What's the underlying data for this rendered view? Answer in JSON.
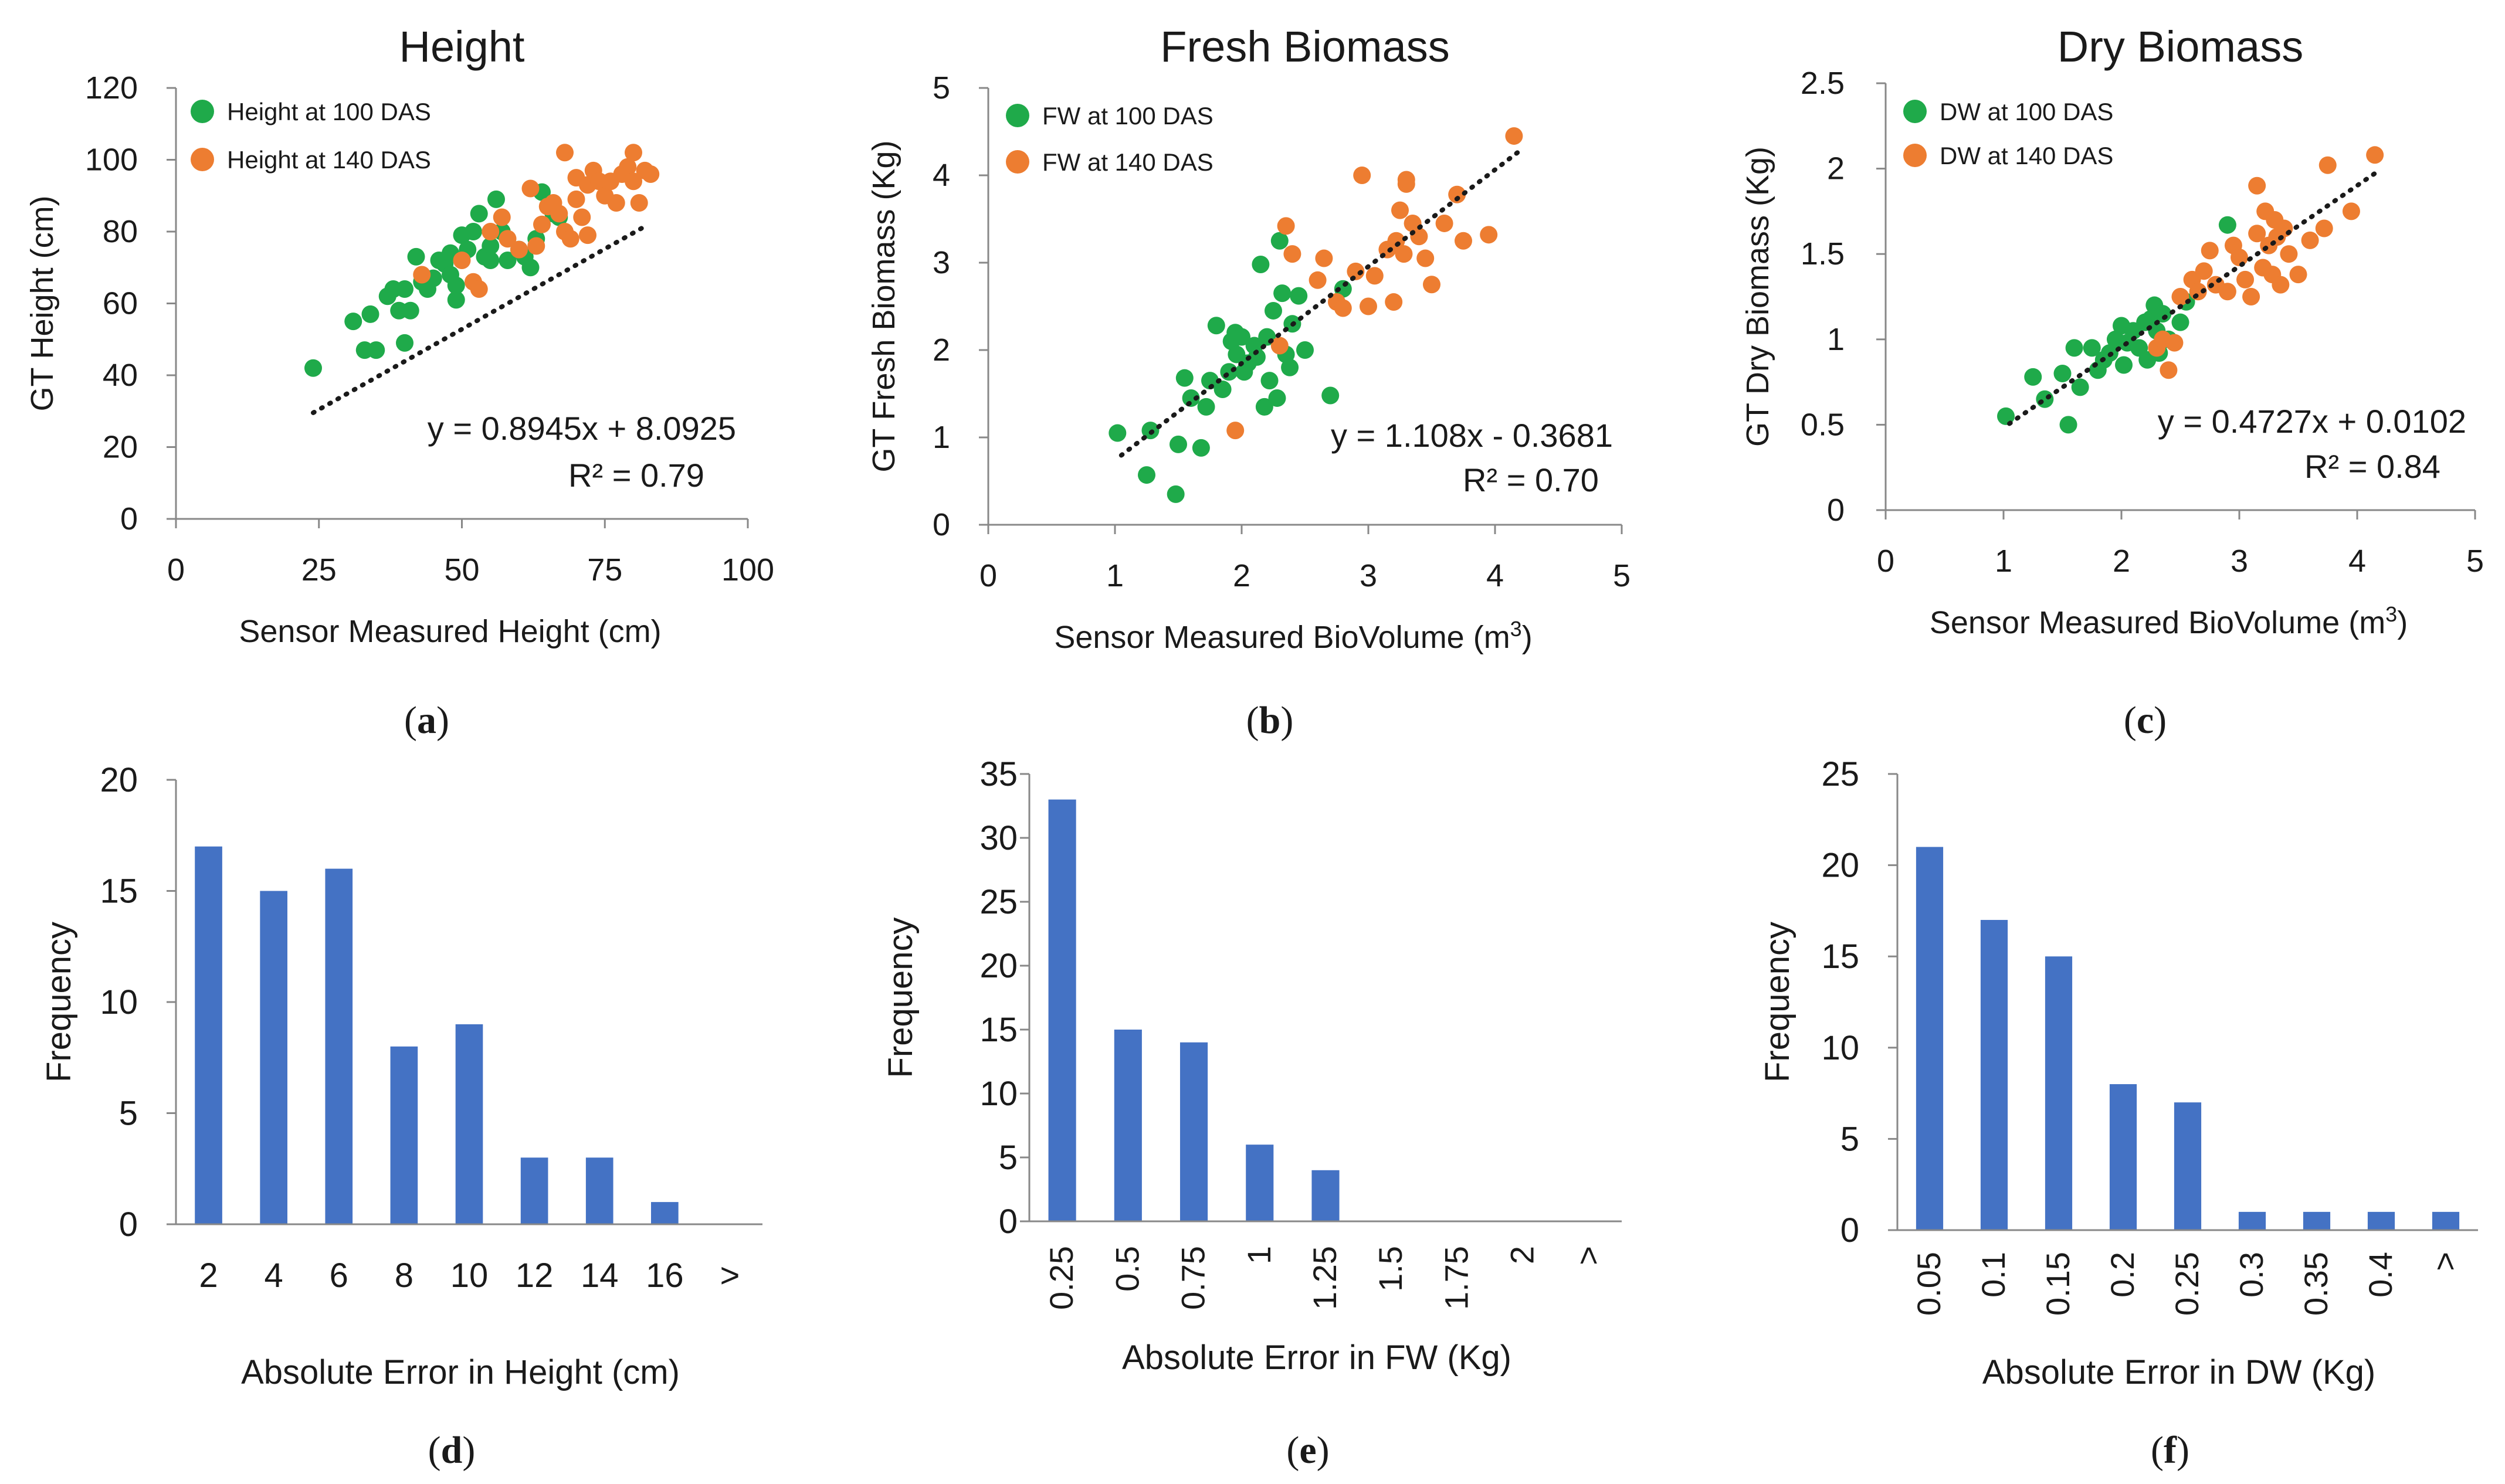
{
  "colors": {
    "green": "#1faa4a",
    "orange": "#ed7d31",
    "bar": "#4472c4",
    "axis": "#888888",
    "text": "#1a1a1a",
    "trend": "#1a1a1a"
  },
  "chart_data": [
    {
      "id": "a",
      "type": "scatter",
      "title": "Height",
      "xlabel": "Sensor Measured Height (cm)",
      "ylabel": "GT Height (cm)",
      "caption_letter": "a",
      "xlim": [
        0,
        100
      ],
      "xticks": [
        0,
        25,
        50,
        75,
        100
      ],
      "ylim": [
        0,
        120
      ],
      "yticks": [
        0,
        20,
        40,
        60,
        80,
        100,
        120
      ],
      "equation": "y = 0.8945x + 8.0925",
      "r2": "R² = 0.79",
      "trendline": {
        "slope": 0.8945,
        "intercept": 8.0925,
        "x_range": [
          24,
          82
        ]
      },
      "series": [
        {
          "name": "Height at 100 DAS",
          "color_key": "green",
          "points": [
            [
              24,
              42
            ],
            [
              31,
              55
            ],
            [
              33,
              47
            ],
            [
              35,
              47
            ],
            [
              34,
              57
            ],
            [
              37,
              62
            ],
            [
              38,
              64
            ],
            [
              40,
              64
            ],
            [
              39,
              58
            ],
            [
              41,
              58
            ],
            [
              40,
              49
            ],
            [
              42,
              73
            ],
            [
              43,
              66
            ],
            [
              44,
              64
            ],
            [
              45,
              67
            ],
            [
              46,
              72
            ],
            [
              47,
              71
            ],
            [
              48,
              74
            ],
            [
              48,
              68
            ],
            [
              49,
              61
            ],
            [
              49,
              65
            ],
            [
              50,
              79
            ],
            [
              51,
              75
            ],
            [
              52,
              80
            ],
            [
              53,
              85
            ],
            [
              54,
              73
            ],
            [
              55,
              76
            ],
            [
              55,
              72
            ],
            [
              56,
              89
            ],
            [
              57,
              80
            ],
            [
              58,
              72
            ],
            [
              60,
              75
            ],
            [
              61,
              73
            ],
            [
              62,
              70
            ],
            [
              63,
              78
            ],
            [
              64,
              91
            ],
            [
              66,
              85
            ],
            [
              67,
              84
            ]
          ]
        },
        {
          "name": "Height at 140 DAS",
          "color_key": "orange",
          "points": [
            [
              43,
              68
            ],
            [
              50,
              72
            ],
            [
              52,
              66
            ],
            [
              53,
              64
            ],
            [
              55,
              80
            ],
            [
              57,
              84
            ],
            [
              58,
              78
            ],
            [
              60,
              75
            ],
            [
              62,
              92
            ],
            [
              63,
              76
            ],
            [
              64,
              82
            ],
            [
              65,
              87
            ],
            [
              66,
              88
            ],
            [
              67,
              85
            ],
            [
              68,
              80
            ],
            [
              68,
              102
            ],
            [
              69,
              78
            ],
            [
              70,
              95
            ],
            [
              70,
              89
            ],
            [
              71,
              84
            ],
            [
              72,
              93
            ],
            [
              72,
              79
            ],
            [
              73,
              97
            ],
            [
              74,
              94
            ],
            [
              75,
              90
            ],
            [
              76,
              94
            ],
            [
              77,
              88
            ],
            [
              78,
              96
            ],
            [
              79,
              98
            ],
            [
              80,
              102
            ],
            [
              80,
              94
            ],
            [
              81,
              88
            ],
            [
              82,
              97
            ],
            [
              83,
              96
            ]
          ]
        }
      ]
    },
    {
      "id": "b",
      "type": "scatter",
      "title": "Fresh Biomass",
      "xlabel": "Sensor Measured BioVolume (m",
      "xlabel_sup": "3",
      "xlabel_end": ")",
      "ylabel": "GT Fresh Biomass (Kg)",
      "caption_letter": "b",
      "xlim": [
        0,
        5
      ],
      "xticks": [
        0,
        1,
        2,
        3,
        4,
        5
      ],
      "ylim": [
        0,
        5
      ],
      "yticks": [
        0,
        1,
        2,
        3,
        4,
        5
      ],
      "equation": "y = 1.108x - 0.3681",
      "r2": "R² = 0.70",
      "trendline": {
        "slope": 1.108,
        "intercept": -0.3681,
        "x_range": [
          1.05,
          4.2
        ]
      },
      "series": [
        {
          "name": "FW at 100 DAS",
          "color_key": "green",
          "points": [
            [
              1.02,
              1.05
            ],
            [
              1.25,
              0.57
            ],
            [
              1.28,
              1.08
            ],
            [
              1.48,
              0.35
            ],
            [
              1.5,
              0.92
            ],
            [
              1.55,
              1.68
            ],
            [
              1.6,
              1.45
            ],
            [
              1.68,
              0.88
            ],
            [
              1.72,
              1.35
            ],
            [
              1.75,
              1.65
            ],
            [
              1.8,
              2.28
            ],
            [
              1.85,
              1.55
            ],
            [
              1.9,
              1.75
            ],
            [
              1.92,
              2.1
            ],
            [
              1.95,
              2.2
            ],
            [
              1.96,
              1.95
            ],
            [
              2.0,
              2.15
            ],
            [
              2.02,
              1.75
            ],
            [
              2.05,
              1.85
            ],
            [
              2.1,
              2.05
            ],
            [
              2.12,
              1.92
            ],
            [
              2.15,
              2.98
            ],
            [
              2.18,
              1.35
            ],
            [
              2.2,
              2.15
            ],
            [
              2.22,
              1.65
            ],
            [
              2.25,
              2.45
            ],
            [
              2.28,
              1.45
            ],
            [
              2.3,
              3.25
            ],
            [
              2.32,
              2.65
            ],
            [
              2.35,
              1.95
            ],
            [
              2.38,
              1.8
            ],
            [
              2.4,
              2.3
            ],
            [
              2.45,
              2.62
            ],
            [
              2.5,
              2.0
            ],
            [
              2.7,
              1.48
            ],
            [
              2.8,
              2.7
            ]
          ]
        },
        {
          "name": "FW at 140 DAS",
          "color_key": "orange",
          "points": [
            [
              1.95,
              1.08
            ],
            [
              2.3,
              2.05
            ],
            [
              2.35,
              3.42
            ],
            [
              2.4,
              3.1
            ],
            [
              2.6,
              2.8
            ],
            [
              2.65,
              3.05
            ],
            [
              2.75,
              2.55
            ],
            [
              2.8,
              2.48
            ],
            [
              2.9,
              2.9
            ],
            [
              2.95,
              4.0
            ],
            [
              3.0,
              2.5
            ],
            [
              3.05,
              2.85
            ],
            [
              3.15,
              3.15
            ],
            [
              3.2,
              2.55
            ],
            [
              3.22,
              3.25
            ],
            [
              3.25,
              3.6
            ],
            [
              3.28,
              3.1
            ],
            [
              3.3,
              3.9
            ],
            [
              3.3,
              3.95
            ],
            [
              3.35,
              3.45
            ],
            [
              3.4,
              3.3
            ],
            [
              3.45,
              3.05
            ],
            [
              3.5,
              2.75
            ],
            [
              3.7,
              3.78
            ],
            [
              3.75,
              3.25
            ],
            [
              3.95,
              3.32
            ],
            [
              4.15,
              4.45
            ],
            [
              3.6,
              3.45
            ]
          ]
        }
      ]
    },
    {
      "id": "c",
      "type": "scatter",
      "title": "Dry Biomass",
      "xlabel": "Sensor Measured BioVolume (m",
      "xlabel_sup": "3",
      "xlabel_end": ")",
      "ylabel": "GT Dry Biomass (Kg)",
      "caption_letter": "c",
      "xlim": [
        0,
        5
      ],
      "xticks": [
        0,
        1,
        2,
        3,
        4,
        5
      ],
      "ylim": [
        0,
        2.5
      ],
      "yticks": [
        0,
        0.5,
        1,
        1.5,
        2,
        2.5
      ],
      "equation": "y = 0.4727x + 0.0102",
      "r2": "R² = 0.84",
      "trendline": {
        "slope": 0.4727,
        "intercept": 0.0102,
        "x_range": [
          1.05,
          4.2
        ]
      },
      "series": [
        {
          "name": "DW at 100 DAS",
          "color_key": "green",
          "points": [
            [
              1.02,
              0.55
            ],
            [
              1.25,
              0.78
            ],
            [
              1.35,
              0.65
            ],
            [
              1.5,
              0.8
            ],
            [
              1.55,
              0.5
            ],
            [
              1.6,
              0.95
            ],
            [
              1.65,
              0.72
            ],
            [
              1.75,
              0.95
            ],
            [
              1.8,
              0.82
            ],
            [
              1.85,
              0.88
            ],
            [
              1.9,
              0.92
            ],
            [
              1.95,
              1.0
            ],
            [
              2.0,
              1.08
            ],
            [
              2.02,
              0.85
            ],
            [
              2.05,
              0.98
            ],
            [
              2.1,
              1.05
            ],
            [
              2.15,
              0.95
            ],
            [
              2.2,
              1.1
            ],
            [
              2.22,
              0.88
            ],
            [
              2.25,
              1.12
            ],
            [
              2.28,
              1.2
            ],
            [
              2.3,
              1.05
            ],
            [
              2.32,
              0.92
            ],
            [
              2.35,
              1.15
            ],
            [
              2.4,
              1.0
            ],
            [
              2.5,
              1.1
            ],
            [
              2.55,
              1.22
            ],
            [
              2.9,
              1.67
            ]
          ]
        },
        {
          "name": "DW at 140 DAS",
          "color_key": "orange",
          "points": [
            [
              2.3,
              0.95
            ],
            [
              2.35,
              1.0
            ],
            [
              2.4,
              0.82
            ],
            [
              2.45,
              0.98
            ],
            [
              2.5,
              1.25
            ],
            [
              2.6,
              1.35
            ],
            [
              2.65,
              1.28
            ],
            [
              2.7,
              1.4
            ],
            [
              2.75,
              1.52
            ],
            [
              2.8,
              1.32
            ],
            [
              2.9,
              1.28
            ],
            [
              2.95,
              1.55
            ],
            [
              3.0,
              1.48
            ],
            [
              3.05,
              1.35
            ],
            [
              3.1,
              1.25
            ],
            [
              3.15,
              1.9
            ],
            [
              3.15,
              1.62
            ],
            [
              3.2,
              1.42
            ],
            [
              3.22,
              1.75
            ],
            [
              3.25,
              1.55
            ],
            [
              3.28,
              1.38
            ],
            [
              3.3,
              1.7
            ],
            [
              3.32,
              1.6
            ],
            [
              3.35,
              1.32
            ],
            [
              3.38,
              1.65
            ],
            [
              3.42,
              1.5
            ],
            [
              3.5,
              1.38
            ],
            [
              3.6,
              1.58
            ],
            [
              3.72,
              1.65
            ],
            [
              3.75,
              2.02
            ],
            [
              3.95,
              1.75
            ],
            [
              4.15,
              2.08
            ]
          ]
        }
      ]
    },
    {
      "id": "d",
      "type": "bar",
      "xlabel": "Absolute Error in Height (cm)",
      "ylabel": "Frequency",
      "caption_letter": "d",
      "rotate_ticks": false,
      "categories": [
        "2",
        "4",
        "6",
        "8",
        "10",
        "12",
        "14",
        "16",
        ">"
      ],
      "values": [
        17,
        15,
        16,
        8,
        9,
        3,
        3,
        1,
        0
      ],
      "ylim": [
        0,
        20
      ],
      "yticks": [
        0,
        5,
        10,
        15,
        20
      ]
    },
    {
      "id": "e",
      "type": "bar",
      "xlabel": "Absolute Error in FW (Kg)",
      "ylabel": "Frequency",
      "caption_letter": "e",
      "rotate_ticks": true,
      "categories": [
        "0.25",
        "0.5",
        "0.75",
        "1",
        "1.25",
        "1.5",
        "1.75",
        "2",
        ">"
      ],
      "values": [
        33,
        15,
        14,
        6,
        4,
        0,
        0,
        0,
        0
      ],
      "ylim": [
        0,
        35
      ],
      "yticks": [
        0,
        5,
        10,
        15,
        20,
        25,
        30,
        35
      ]
    },
    {
      "id": "f",
      "type": "bar",
      "xlabel": "Absolute Error in DW (Kg)",
      "ylabel": "Frequency",
      "caption_letter": "f",
      "rotate_ticks": true,
      "categories": [
        "0.05",
        "0.1",
        "0.15",
        "0.2",
        "0.25",
        "0.3",
        "0.35",
        "0.4",
        ">"
      ],
      "values": [
        21,
        17,
        15,
        8,
        7,
        1,
        1,
        1,
        1
      ],
      "ylim": [
        0,
        25
      ],
      "yticks": [
        0,
        5,
        10,
        15,
        20,
        25
      ]
    }
  ]
}
